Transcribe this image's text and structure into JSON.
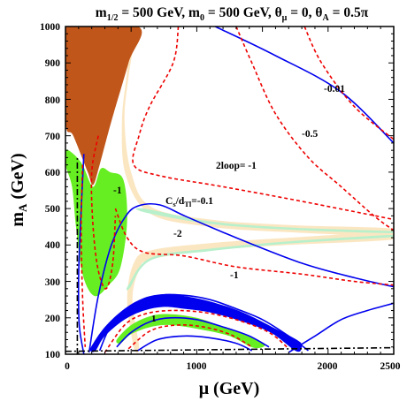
{
  "chart_data": {
    "type": "contour",
    "title": "m1/2 = 500 GeV, m0 = 500 GeV, θμ = 0, θA = 0.5π",
    "title_parts": {
      "a": "m",
      "a_sub": "1/2",
      "a_rest": " = 500 GeV, m",
      "b_sub": "0",
      "b_rest": " = 500 GeV, θ",
      "c_sub": "μ",
      "c_rest": " = 0, θ",
      "d_sub": "A",
      "d_rest": " = 0.5π"
    },
    "xlabel": "μ (GeV)",
    "ylabel": "mA (GeV)",
    "ylabel_parts": {
      "main": "m",
      "sub": "A",
      "rest": " (GeV)"
    },
    "xlim": [
      0,
      2500
    ],
    "ylim": [
      100,
      1000
    ],
    "xticks": [
      0,
      1000,
      2000,
      2500
    ],
    "xtick_labels": [
      "0",
      "1000",
      "2000",
      "2500"
    ],
    "yticks": [
      100,
      200,
      300,
      400,
      500,
      600,
      700,
      800,
      900,
      1000
    ],
    "ytick_labels": [
      "100",
      "200",
      "300",
      "400",
      "500",
      "600",
      "700",
      "800",
      "900",
      "1000"
    ],
    "colors": {
      "brown": "#c0561a",
      "green": "#66ee22",
      "blue": "#0000ee",
      "red": "#ee0000",
      "beige": "#fbe6c2",
      "teal": "#b8f0cc",
      "black": "#000000"
    },
    "labels": {
      "m001": "-0.01",
      "m05": "-0.5",
      "twoloop": "2loop= -1",
      "m1_left": "-1",
      "cs_main": "C",
      "cs_sub1": "s",
      "cs_mid": "/d",
      "cs_sub2": "Tl",
      "cs_rest": "=-0.1",
      "m2": "-2",
      "m1_blue": "-1",
      "one": "1"
    },
    "regions": {
      "brown": [
        [
          0,
          1000
        ],
        [
          555,
          1000
        ],
        [
          480,
          900
        ],
        [
          350,
          740
        ],
        [
          260,
          620
        ],
        [
          210,
          565
        ],
        [
          170,
          600
        ],
        [
          60,
          700
        ],
        [
          0,
          740
        ]
      ],
      "green_upper": [
        [
          0,
          660
        ],
        [
          60,
          650
        ],
        [
          130,
          620
        ],
        [
          210,
          560
        ],
        [
          270,
          610
        ],
        [
          340,
          600
        ],
        [
          440,
          580
        ],
        [
          470,
          470
        ],
        [
          420,
          340
        ],
        [
          330,
          290
        ],
        [
          220,
          260
        ],
        [
          130,
          320
        ],
        [
          80,
          450
        ],
        [
          50,
          560
        ],
        [
          0,
          620
        ]
      ],
      "blue_band": [
        [
          195,
          120
        ],
        [
          300,
          175
        ],
        [
          450,
          225
        ],
        [
          600,
          255
        ],
        [
          750,
          265
        ],
        [
          900,
          260
        ],
        [
          1100,
          245
        ],
        [
          1350,
          215
        ],
        [
          1600,
          170
        ],
        [
          1760,
          140
        ],
        [
          1800,
          125
        ],
        [
          1760,
          108
        ],
        [
          1560,
          160
        ],
        [
          1300,
          195
        ],
        [
          1100,
          215
        ],
        [
          900,
          225
        ],
        [
          750,
          230
        ],
        [
          600,
          220
        ],
        [
          450,
          195
        ],
        [
          300,
          150
        ],
        [
          230,
          110
        ],
        [
          195,
          108
        ]
      ],
      "green_lower": [
        [
          390,
          140
        ],
        [
          500,
          180
        ],
        [
          650,
          205
        ],
        [
          800,
          210
        ],
        [
          1000,
          200
        ],
        [
          1200,
          175
        ],
        [
          1420,
          145
        ],
        [
          1520,
          125
        ],
        [
          1430,
          118
        ],
        [
          1250,
          150
        ],
        [
          1000,
          170
        ],
        [
          800,
          180
        ],
        [
          650,
          175
        ],
        [
          500,
          155
        ],
        [
          420,
          130
        ]
      ],
      "beige_upper": [
        [
          540,
          1000
        ],
        [
          480,
          860
        ],
        [
          450,
          740
        ],
        [
          500,
          600
        ],
        [
          650,
          505
        ],
        [
          1100,
          470
        ],
        [
          1700,
          455
        ],
        [
          2500,
          445
        ],
        [
          2500,
          425
        ],
        [
          1700,
          435
        ],
        [
          1100,
          450
        ],
        [
          650,
          485
        ],
        [
          460,
          590
        ],
        [
          430,
          740
        ],
        [
          470,
          880
        ],
        [
          500,
          1000
        ]
      ],
      "beige_lower": [
        [
          520,
          120
        ],
        [
          470,
          250
        ],
        [
          520,
          350
        ],
        [
          650,
          385
        ],
        [
          1100,
          405
        ],
        [
          1700,
          420
        ],
        [
          2500,
          435
        ],
        [
          2500,
          415
        ],
        [
          1700,
          400
        ],
        [
          1100,
          385
        ],
        [
          650,
          360
        ],
        [
          560,
          330
        ],
        [
          510,
          250
        ],
        [
          560,
          120
        ]
      ],
      "teal_upper": [
        [
          600,
          500
        ],
        [
          1100,
          465
        ],
        [
          1700,
          448
        ],
        [
          2500,
          438
        ],
        [
          2500,
          432
        ],
        [
          1700,
          442
        ],
        [
          1100,
          458
        ],
        [
          600,
          490
        ]
      ],
      "teal_lower": [
        [
          480,
          290
        ],
        [
          650,
          365
        ],
        [
          1100,
          390
        ],
        [
          1700,
          410
        ],
        [
          2500,
          428
        ],
        [
          2500,
          422
        ],
        [
          1700,
          404
        ],
        [
          1100,
          383
        ],
        [
          650,
          358
        ],
        [
          490,
          282
        ]
      ]
    },
    "blue_curves": {
      "b001": [
        [
          1140,
          1000
        ],
        [
          1600,
          920
        ],
        [
          2100,
          820
        ],
        [
          2500,
          680
        ]
      ],
      "b01_main": [
        [
          180,
          105
        ],
        [
          250,
          260
        ],
        [
          350,
          400
        ],
        [
          460,
          480
        ],
        [
          560,
          508
        ],
        [
          720,
          510
        ],
        [
          920,
          478
        ],
        [
          1300,
          420
        ],
        [
          1800,
          350
        ],
        [
          2200,
          310
        ],
        [
          2500,
          285
        ]
      ],
      "b01_left": [
        [
          140,
          650
        ],
        [
          110,
          420
        ],
        [
          100,
          300
        ],
        [
          105,
          180
        ],
        [
          140,
          100
        ]
      ],
      "b1_outer": [
        [
          260,
          110
        ],
        [
          350,
          180
        ],
        [
          500,
          225
        ],
        [
          700,
          260
        ],
        [
          900,
          262
        ],
        [
          1100,
          250
        ],
        [
          1300,
          225
        ],
        [
          1500,
          195
        ],
        [
          1700,
          150
        ],
        [
          1850,
          110
        ]
      ],
      "b1_inner": [
        [
          390,
          120
        ],
        [
          500,
          160
        ],
        [
          650,
          190
        ],
        [
          800,
          200
        ],
        [
          1000,
          195
        ],
        [
          1200,
          175
        ],
        [
          1400,
          150
        ],
        [
          1550,
          120
        ]
      ],
      "b_lower": [
        [
          550,
          110
        ],
        [
          700,
          140
        ],
        [
          900,
          150
        ],
        [
          1100,
          145
        ],
        [
          1300,
          130
        ],
        [
          1420,
          110
        ]
      ],
      "b_right": [
        [
          1700,
          105
        ],
        [
          1900,
          150
        ],
        [
          2100,
          195
        ],
        [
          2300,
          220
        ],
        [
          2500,
          240
        ]
      ]
    },
    "red_curves": {
      "r05": [
        [
          1300,
          1000
        ],
        [
          1420,
          900
        ],
        [
          1600,
          760
        ],
        [
          1850,
          640
        ],
        [
          2100,
          560
        ],
        [
          2350,
          480
        ],
        [
          2500,
          440
        ]
      ],
      "r_right": [
        [
          1820,
          1000
        ],
        [
          1950,
          900
        ],
        [
          2200,
          780
        ],
        [
          2500,
          690
        ]
      ],
      "r_twoloop": [
        [
          860,
          1000
        ],
        [
          820,
          900
        ],
        [
          640,
          780
        ],
        [
          560,
          700
        ],
        [
          520,
          620
        ],
        [
          720,
          590
        ],
        [
          1200,
          560
        ],
        [
          1800,
          520
        ],
        [
          2500,
          470
        ]
      ],
      "r2": [
        [
          380,
          500
        ],
        [
          470,
          420
        ],
        [
          600,
          380
        ],
        [
          900,
          370
        ],
        [
          1300,
          340
        ],
        [
          1800,
          320
        ],
        [
          2200,
          300
        ],
        [
          2500,
          290
        ]
      ],
      "r1_left": [
        [
          250,
          700
        ],
        [
          200,
          600
        ],
        [
          210,
          450
        ],
        [
          250,
          330
        ],
        [
          310,
          280
        ],
        [
          360,
          350
        ],
        [
          380,
          480
        ]
      ],
      "r1_vert": [
        [
          130,
          620
        ],
        [
          120,
          450
        ],
        [
          130,
          260
        ],
        [
          150,
          120
        ]
      ],
      "r_low1": [
        [
          300,
          105
        ],
        [
          450,
          180
        ],
        [
          600,
          210
        ],
        [
          800,
          220
        ],
        [
          1050,
          215
        ],
        [
          1300,
          195
        ],
        [
          1550,
          160
        ],
        [
          1700,
          115
        ]
      ],
      "r_low2": [
        [
          480,
          115
        ],
        [
          650,
          165
        ],
        [
          850,
          180
        ],
        [
          1050,
          175
        ],
        [
          1250,
          155
        ],
        [
          1420,
          120
        ]
      ]
    },
    "black_lines": {
      "dashdot_horizontal": [
        [
          0,
          108
        ],
        [
          2500,
          118
        ]
      ],
      "dashdot_vertical": [
        [
          90,
          100
        ],
        [
          90,
          640
        ]
      ]
    }
  }
}
